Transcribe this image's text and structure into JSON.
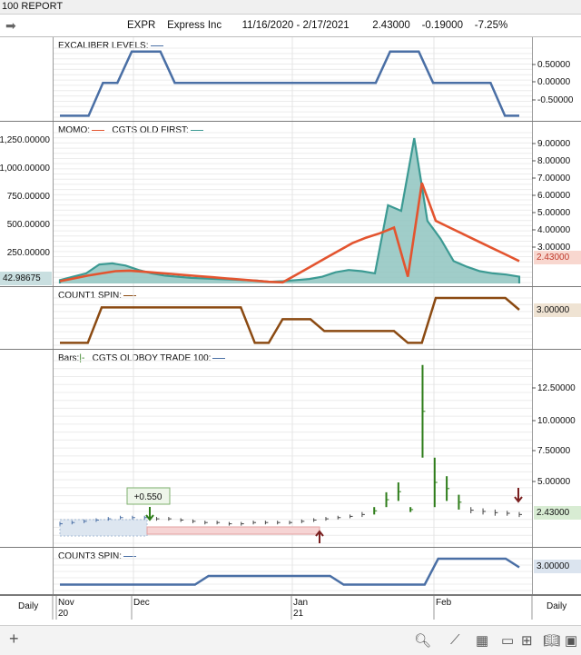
{
  "window": {
    "title": "100  REPORT"
  },
  "header": {
    "symbol": "EXPR",
    "name": "Express Inc",
    "range": "11/16/2020 - 2/17/2021",
    "last": "2.43000",
    "change": "-0.19000",
    "pct": "-7.25%"
  },
  "colors": {
    "blue": "#4a6fa5",
    "red": "#e3542f",
    "teal": "#3c9a93",
    "brown": "#8b4a12",
    "green": "#2e7d1a"
  },
  "chart_data": [
    {
      "type": "line",
      "name": "excaliber",
      "title": "EXCALIBER LEVELS:",
      "yticks": [
        "0.50000",
        "0.00000",
        "-0.50000"
      ],
      "ylim": [
        -1.1,
        1.0
      ],
      "y": [
        -1,
        -1,
        -1,
        0,
        0,
        0.95,
        0.95,
        0.95,
        0,
        0,
        0,
        0,
        0,
        0,
        0,
        0,
        0,
        0,
        0,
        0,
        0,
        0,
        0,
        0.95,
        0.95,
        0.95,
        0,
        0,
        0,
        0,
        0,
        -1,
        -1
      ]
    },
    {
      "type": "line",
      "name": "momo",
      "title": "MOMO:",
      "title2": "CGTS OLD FIRST:",
      "left_ticks": [
        "1,250.00000",
        "1,000.00000",
        "750.00000",
        "500.00000",
        "250.00000"
      ],
      "left_value": "42.98675",
      "right_ticks": [
        "9.00000",
        "8.00000",
        "7.00000",
        "6.00000",
        "5.00000",
        "4.00000",
        "3.00000"
      ],
      "right_value": "2.43000",
      "ylim": [
        0,
        1350
      ],
      "momo": [
        20,
        45,
        70,
        90,
        110,
        115,
        105,
        95,
        85,
        75,
        65,
        55,
        45,
        35,
        25,
        15,
        10,
        80,
        150,
        220,
        290,
        360,
        410,
        450,
        500,
        60,
        900,
        560,
        500,
        440,
        380,
        320,
        260,
        200
      ],
      "area": [
        30,
        60,
        90,
        170,
        180,
        160,
        120,
        90,
        70,
        60,
        50,
        45,
        40,
        35,
        30,
        25,
        15,
        20,
        30,
        40,
        60,
        100,
        120,
        110,
        90,
        700,
        650,
        1300,
        560,
        400,
        200,
        150,
        110,
        90,
        80,
        60
      ]
    },
    {
      "type": "line",
      "name": "count1",
      "title": "COUNT1 SPIN:",
      "value": "3.00000",
      "ylim": [
        0,
        4
      ],
      "y": [
        0.2,
        0.2,
        0.2,
        3.2,
        3.2,
        3.2,
        3.2,
        3.2,
        3.2,
        3.2,
        3.2,
        3.2,
        3.2,
        3.2,
        0.2,
        0.2,
        2.2,
        2.2,
        2.2,
        1.2,
        1.2,
        1.2,
        1.2,
        1.2,
        1.2,
        0.2,
        0.2,
        4,
        4,
        4,
        4,
        4,
        4,
        3
      ]
    },
    {
      "type": "bar",
      "name": "bars",
      "title": "Bars:",
      "title2": "CGTS OLDBOY TRADE 100:",
      "yticks": [
        "12.50000",
        "10.00000",
        "7.50000",
        "5.00000"
      ],
      "value": "2.43000",
      "ylim": [
        0,
        15
      ],
      "bars": [
        [
          1.5,
          1.8
        ],
        [
          1.6,
          1.9
        ],
        [
          1.7,
          2.0
        ],
        [
          1.8,
          2.1
        ],
        [
          1.9,
          2.2
        ],
        [
          2.0,
          2.3
        ],
        [
          2.0,
          2.3
        ],
        [
          2.0,
          2.3
        ],
        [
          1.9,
          2.2
        ],
        [
          1.9,
          2.2
        ],
        [
          1.8,
          2.1
        ],
        [
          1.7,
          2.0
        ],
        [
          1.6,
          1.9
        ],
        [
          1.6,
          1.9
        ],
        [
          1.5,
          1.8
        ],
        [
          1.5,
          1.8
        ],
        [
          1.6,
          1.9
        ],
        [
          1.6,
          1.9
        ],
        [
          1.6,
          1.9
        ],
        [
          1.6,
          1.9
        ],
        [
          1.7,
          2.0
        ],
        [
          1.8,
          2.1
        ],
        [
          1.9,
          2.2
        ],
        [
          2.0,
          2.3
        ],
        [
          2.1,
          2.4
        ],
        [
          2.2,
          2.6
        ],
        [
          2.4,
          3.0
        ],
        [
          3.0,
          4.2
        ],
        [
          3.5,
          5.0
        ],
        [
          2.6,
          3.0
        ],
        [
          7.0,
          14.5
        ],
        [
          3.0,
          7.0
        ],
        [
          3.5,
          5.5
        ],
        [
          2.8,
          4.0
        ],
        [
          2.5,
          3.0
        ],
        [
          2.4,
          2.9
        ],
        [
          2.3,
          2.8
        ],
        [
          2.3,
          2.7
        ],
        [
          2.2,
          2.6
        ]
      ],
      "label": "+0.550"
    },
    {
      "type": "line",
      "name": "count3",
      "title": "COUNT3 SPIN:",
      "value": "3.00000",
      "ylim": [
        0,
        4
      ],
      "y": [
        1,
        1,
        1,
        1,
        1,
        1,
        1,
        1,
        1,
        1,
        1,
        2,
        2,
        2,
        2,
        2,
        2,
        2,
        2,
        2,
        2,
        1,
        1,
        1,
        1,
        1,
        1,
        1,
        4,
        4,
        4,
        4,
        4,
        4,
        3
      ]
    }
  ],
  "xaxis": {
    "labels": [
      "Nov",
      "Dec",
      "Jan",
      "Feb"
    ],
    "sublabels": [
      "20",
      "21"
    ],
    "period": "Daily"
  },
  "toolbar": {
    "add": "+"
  }
}
